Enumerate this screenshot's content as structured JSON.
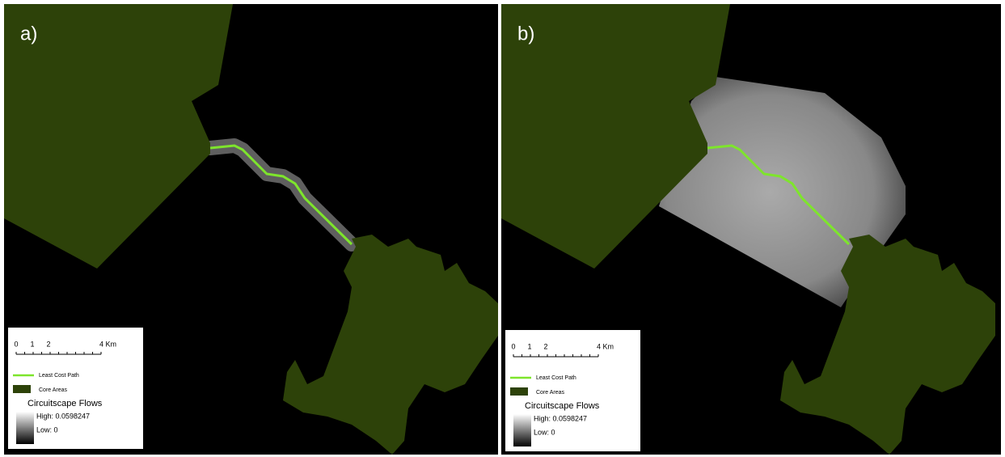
{
  "panels": [
    {
      "label": "a)",
      "legend": {
        "scale": [
          "0",
          "1",
          "2",
          "4 Km"
        ],
        "items": [
          "Least Cost Path",
          "Core Areas"
        ],
        "flow_title": "Circuitscape Flows",
        "high": "High: 0.0598247",
        "low": "Low: 0"
      }
    },
    {
      "label": "b)",
      "legend": {
        "scale": [
          "0",
          "1",
          "2",
          "4 Km"
        ],
        "items": [
          "Least Cost Path",
          "Core Areas"
        ],
        "flow_title": "Circuitscape Flows",
        "high": "High: 0.0598247",
        "low": "Low: 0"
      }
    }
  ]
}
